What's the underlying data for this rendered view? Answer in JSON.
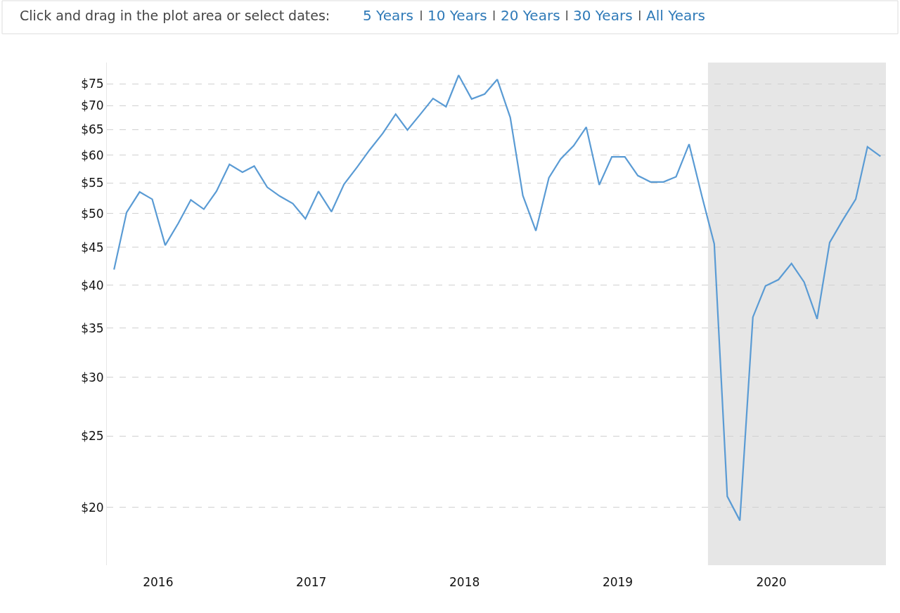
{
  "chart_data": {
    "type": "line",
    "annotations": [
      "Click and drag in the plot area or select dates:",
      "5 Years",
      "10 Years",
      "20 Years",
      "30 Years",
      "All Years"
    ],
    "x": [
      "2016-03-31",
      "2016-04-30",
      "2016-05-31",
      "2016-06-30",
      "2016-07-31",
      "2016-08-31",
      "2016-09-30",
      "2016-10-31",
      "2016-11-30",
      "2016-12-31",
      "2017-01-31",
      "2017-02-28",
      "2017-03-31",
      "2017-04-30",
      "2017-05-31",
      "2017-06-30",
      "2017-07-31",
      "2017-08-31",
      "2017-09-30",
      "2017-10-31",
      "2017-11-30",
      "2017-12-31",
      "2018-01-31",
      "2018-02-28",
      "2018-03-31",
      "2018-04-30",
      "2018-05-31",
      "2018-06-30",
      "2018-07-31",
      "2018-08-31",
      "2018-09-30",
      "2018-10-31",
      "2018-11-30",
      "2018-12-31",
      "2019-01-31",
      "2019-02-28",
      "2019-03-31",
      "2019-04-30",
      "2019-05-31",
      "2019-06-30",
      "2019-07-31",
      "2019-08-31",
      "2019-09-30",
      "2019-10-31",
      "2019-11-30",
      "2019-12-31",
      "2020-01-31",
      "2020-02-29",
      "2020-03-31",
      "2020-04-30",
      "2020-05-31",
      "2020-06-30",
      "2020-07-31",
      "2020-08-31",
      "2020-09-30",
      "2020-10-31",
      "2020-11-30",
      "2020-12-31",
      "2021-01-31",
      "2021-02-28",
      "2021-03-31"
    ],
    "series": [
      {
        "color": "#5a9bd4",
        "values": [
          42.0,
          50.2,
          53.5,
          52.3,
          45.3,
          48.5,
          52.2,
          50.7,
          53.6,
          58.3,
          56.9,
          58.0,
          54.3,
          52.8,
          51.6,
          49.2,
          53.6,
          50.3,
          54.8,
          57.8,
          61.0,
          64.2,
          68.2,
          64.9,
          68.2,
          71.6,
          69.8,
          77.0,
          71.5,
          72.6,
          76.0,
          67.5,
          52.9,
          47.4,
          55.9,
          59.3,
          61.8,
          65.5,
          54.7,
          59.7,
          59.7,
          56.3,
          55.2,
          55.2,
          56.1,
          62.1,
          52.7,
          45.5,
          20.7,
          19.2,
          36.2,
          39.9,
          40.7,
          42.8,
          40.4,
          36.0,
          45.7,
          49.0,
          52.3,
          61.6,
          59.8
        ]
      }
    ],
    "bands": [
      {
        "axis": "x",
        "from": "2020-02-14",
        "to": "2021-04-13",
        "color": "#e6e6e6"
      }
    ],
    "log": "y",
    "xlim": [
      "2016-03-14",
      "2021-04-13"
    ],
    "xticks": [
      {
        "value": "2016-07-14",
        "label": "2016"
      },
      {
        "value": "2017-07-14",
        "label": "2017"
      },
      {
        "value": "2018-07-14",
        "label": "2018"
      },
      {
        "value": "2019-07-14",
        "label": "2019"
      },
      {
        "value": "2020-07-14",
        "label": "2020"
      }
    ],
    "ylim": [
      16.7,
      80.1
    ],
    "yticks": [
      {
        "value": 20,
        "label": "$20"
      },
      {
        "value": 25,
        "label": "$25"
      },
      {
        "value": 30,
        "label": "$30"
      },
      {
        "value": 35,
        "label": "$35"
      },
      {
        "value": 40,
        "label": "$40"
      },
      {
        "value": 45,
        "label": "$45"
      },
      {
        "value": 50,
        "label": "$50"
      },
      {
        "value": 55,
        "label": "$55"
      },
      {
        "value": 60,
        "label": "$60"
      },
      {
        "value": 65,
        "label": "$65"
      },
      {
        "value": 70,
        "label": "$70"
      },
      {
        "value": 75,
        "label": "$75"
      }
    ],
    "grid": "y",
    "marker": "none",
    "line_style": "solid"
  }
}
